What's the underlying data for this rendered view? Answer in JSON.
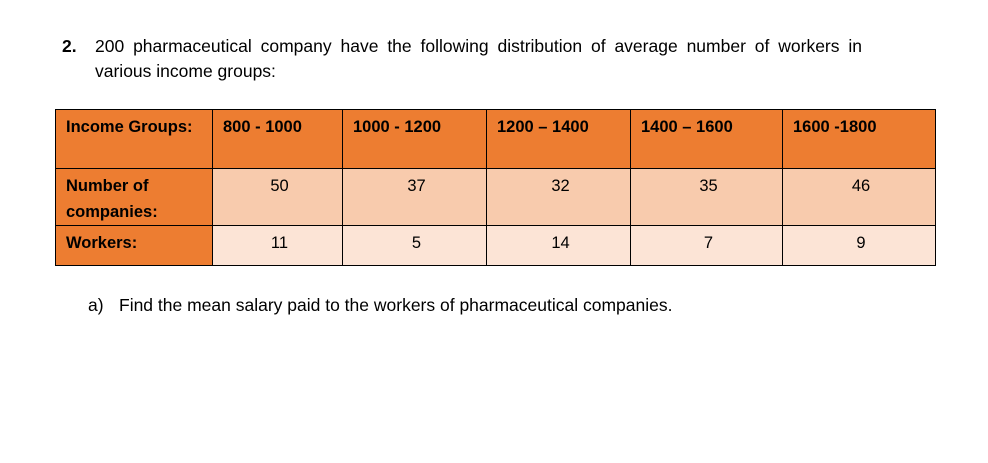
{
  "question": {
    "number": "2.",
    "text": "200 pharmaceutical company have the following distribution of average number of workers in various income groups:"
  },
  "table": {
    "row_labels": {
      "income_groups": "Income Groups:",
      "companies": "Number of companies:",
      "workers": "Workers:"
    },
    "income_groups": [
      "800 - 1000",
      "1000 - 1200",
      "1200 – 1400",
      "1400 – 1600",
      "1600 -1800"
    ],
    "companies": [
      "50",
      "37",
      "32",
      "35",
      "46"
    ],
    "workers": [
      "11",
      "5",
      "14",
      "7",
      "9"
    ]
  },
  "sub_question": {
    "letter": "a)",
    "text": "Find the mean salary paid to the workers of pharmaceutical companies."
  }
}
